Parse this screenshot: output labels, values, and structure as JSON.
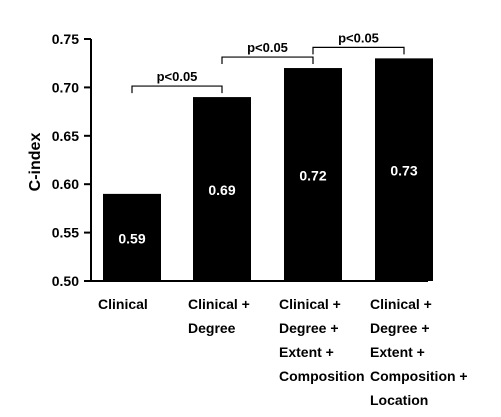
{
  "chart_data": {
    "type": "bar",
    "title": "",
    "xlabel": "",
    "ylabel": "C-index",
    "ylim": [
      0.5,
      0.75
    ],
    "yticks": [
      "0.50",
      "0.55",
      "0.60",
      "0.65",
      "0.70",
      "0.75"
    ],
    "grid": false,
    "legend": "none",
    "bar_color": "#000000",
    "label_color": "#ffffff",
    "categories": [
      [
        "Clinical"
      ],
      [
        "Clinical +",
        "Degree"
      ],
      [
        "Clinical +",
        "Degree +",
        "Extent +",
        "Composition"
      ],
      [
        "Clinical +",
        "Degree +",
        "Extent +",
        "Composition +",
        "Location"
      ]
    ],
    "values": [
      0.59,
      0.69,
      0.72,
      0.73
    ],
    "data_labels": [
      "0.59",
      "0.69",
      "0.72",
      "0.73"
    ],
    "annotations": [
      {
        "from": 0,
        "to": 1,
        "text": "p<0.05"
      },
      {
        "from": 1,
        "to": 2,
        "text": "p<0.05"
      },
      {
        "from": 2,
        "to": 3,
        "text": "p<0.05"
      }
    ]
  }
}
